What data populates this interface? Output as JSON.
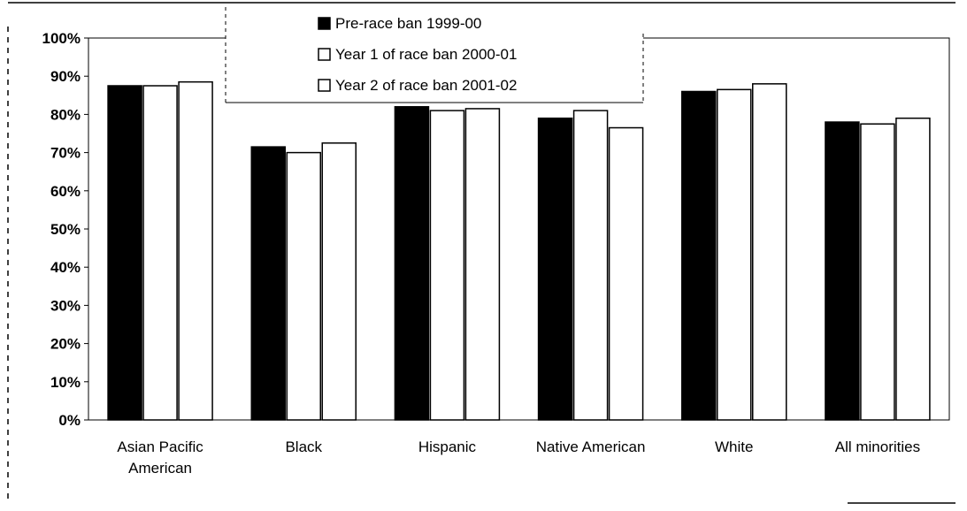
{
  "chart_data": {
    "type": "bar",
    "categories": [
      [
        "Asian Pacific",
        "American"
      ],
      [
        "Black"
      ],
      [
        "Hispanic"
      ],
      [
        "Native American"
      ],
      [
        "White"
      ],
      [
        "All minorities"
      ]
    ],
    "series": [
      {
        "name": "Pre-race ban 1999-00",
        "color": "#000000",
        "values": [
          87.5,
          71.5,
          82,
          79,
          86,
          78
        ]
      },
      {
        "name": "Year 1 of race ban 2000-01",
        "color": "#ffffff",
        "values": [
          87.5,
          70,
          81,
          81,
          86.5,
          77.5
        ]
      },
      {
        "name": "Year 2 of race ban 2001-02",
        "color": "#ffffff",
        "values": [
          88.5,
          72.5,
          81.5,
          76.5,
          88,
          79
        ]
      }
    ],
    "ylim": [
      0,
      100
    ],
    "yticks": [
      "0%",
      "10%",
      "20%",
      "30%",
      "40%",
      "50%",
      "60%",
      "70%",
      "80%",
      "90%",
      "100%"
    ],
    "legend_position": "top-center",
    "grid": false
  }
}
